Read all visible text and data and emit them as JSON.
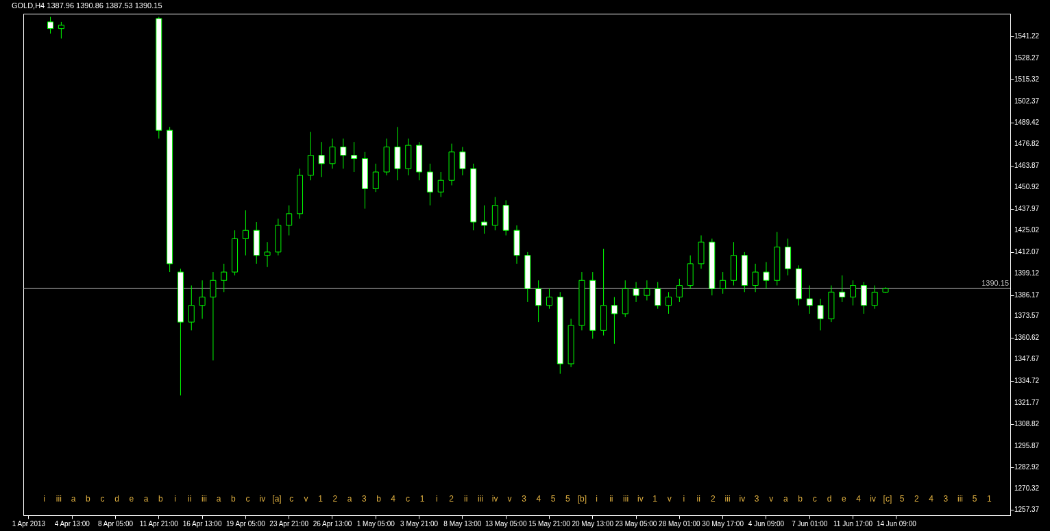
{
  "chart_data": {
    "type": "candlestick",
    "title": "GOLD,H4  1387.96 1390.86 1387.53 1390.15",
    "categories": [
      "1 Apr 2013",
      null,
      null,
      null,
      "4 Apr 13:00",
      null,
      null,
      null,
      "8 Apr 05:00",
      null,
      null,
      null,
      "11 Apr 21:00",
      null,
      null,
      null,
      "16 Apr 13:00",
      null,
      null,
      null,
      "19 Apr 05:00",
      null,
      null,
      null,
      "23 Apr 21:00",
      null,
      null,
      null,
      "26 Apr 13:00",
      null,
      null,
      null,
      "1 May 05:00",
      null,
      null,
      null,
      "3 May 21:00",
      null,
      null,
      null,
      "8 May 13:00",
      null,
      null,
      null,
      "13 May 05:00",
      null,
      null,
      null,
      "15 May 21:00",
      null,
      null,
      null,
      "20 May 13:00",
      null,
      null,
      null,
      "23 May 05:00",
      null,
      null,
      null,
      "28 May 01:00",
      null,
      null,
      null,
      "30 May 17:00",
      null,
      null,
      null,
      "4 Jun 09:00",
      null,
      null,
      null,
      "7 Jun 01:00",
      null,
      null,
      null,
      "11 Jun 17:00",
      null,
      null,
      null,
      "14 Jun 09:00",
      null,
      null,
      null,
      null,
      null,
      null,
      null,
      null,
      null,
      null
    ],
    "ylim": [
      1254.2,
      1554.9
    ],
    "yticks": [
      1257.37,
      1270.32,
      1282.92,
      1295.87,
      1308.82,
      1321.77,
      1334.72,
      1347.67,
      1360.62,
      1373.57,
      1386.17,
      1399.12,
      1412.07,
      1425.02,
      1437.97,
      1450.92,
      1463.87,
      1476.82,
      1489.42,
      1502.37,
      1515.32,
      1528.27,
      1541.22
    ],
    "ref_lines": [
      {
        "axis": "y",
        "value": 1390.15,
        "label": "1390.15",
        "color": "#c0c0c0"
      }
    ],
    "series": [
      {
        "color": "#00ff00",
        "ohlc": [
          null,
          null,
          [
            1550,
            1553,
            1543,
            1546
          ],
          [
            1546,
            1550,
            1540,
            1548
          ],
          null,
          null,
          null,
          null,
          null,
          null,
          null,
          null,
          [
            1552,
            1553,
            1480,
            1485
          ],
          [
            1485,
            1487,
            1400,
            1405
          ],
          [
            1400,
            1402,
            1326,
            1370
          ],
          [
            1370,
            1392,
            1365,
            1380
          ],
          [
            1380,
            1395,
            1372,
            1385
          ],
          [
            1385,
            1400,
            1347,
            1395
          ],
          [
            1395,
            1405,
            1388,
            1400
          ],
          [
            1400,
            1425,
            1398,
            1420
          ],
          [
            1420,
            1437,
            1410,
            1425
          ],
          [
            1425,
            1430,
            1405,
            1410
          ],
          [
            1410,
            1418,
            1403,
            1412
          ],
          [
            1412,
            1432,
            1410,
            1428
          ],
          [
            1428,
            1440,
            1422,
            1435
          ],
          [
            1435,
            1462,
            1432,
            1458
          ],
          [
            1458,
            1484,
            1455,
            1470
          ],
          [
            1470,
            1478,
            1457,
            1465
          ],
          [
            1465,
            1480,
            1462,
            1475
          ],
          [
            1475,
            1480,
            1462,
            1470
          ],
          [
            1470,
            1478,
            1460,
            1468
          ],
          [
            1468,
            1472,
            1438,
            1450
          ],
          [
            1450,
            1465,
            1448,
            1460
          ],
          [
            1460,
            1480,
            1458,
            1475
          ],
          [
            1475,
            1487,
            1455,
            1462
          ],
          [
            1462,
            1480,
            1458,
            1476
          ],
          [
            1476,
            1478,
            1455,
            1460
          ],
          [
            1460,
            1465,
            1440,
            1448
          ],
          [
            1448,
            1460,
            1445,
            1455
          ],
          [
            1455,
            1477,
            1452,
            1472
          ],
          [
            1472,
            1475,
            1458,
            1462
          ],
          [
            1462,
            1465,
            1425,
            1430
          ],
          [
            1430,
            1440,
            1423,
            1428
          ],
          [
            1428,
            1445,
            1425,
            1440
          ],
          [
            1440,
            1443,
            1422,
            1425
          ],
          [
            1425,
            1428,
            1405,
            1410
          ],
          [
            1410,
            1412,
            1382,
            1390
          ],
          [
            1390,
            1395,
            1370,
            1380
          ],
          [
            1380,
            1390,
            1378,
            1385
          ],
          [
            1385,
            1388,
            1339,
            1345
          ],
          [
            1345,
            1372,
            1343,
            1368
          ],
          [
            1368,
            1400,
            1365,
            1395
          ],
          [
            1395,
            1400,
            1360,
            1365
          ],
          [
            1365,
            1414,
            1362,
            1380
          ],
          [
            1380,
            1385,
            1357,
            1375
          ],
          [
            1375,
            1395,
            1373,
            1390
          ],
          [
            1390,
            1394,
            1382,
            1386
          ],
          [
            1386,
            1395,
            1383,
            1390
          ],
          [
            1390,
            1394,
            1378,
            1380
          ],
          [
            1380,
            1388,
            1375,
            1385
          ],
          [
            1385,
            1396,
            1382,
            1392
          ],
          [
            1392,
            1410,
            1390,
            1405
          ],
          [
            1405,
            1422,
            1402,
            1418
          ],
          [
            1418,
            1420,
            1386,
            1390
          ],
          [
            1390,
            1400,
            1387,
            1395
          ],
          [
            1395,
            1418,
            1392,
            1410
          ],
          [
            1410,
            1412,
            1388,
            1392
          ],
          [
            1392,
            1405,
            1388,
            1400
          ],
          [
            1400,
            1406,
            1390,
            1395
          ],
          [
            1395,
            1424,
            1392,
            1415
          ],
          [
            1415,
            1420,
            1398,
            1402
          ],
          [
            1402,
            1404,
            1380,
            1384
          ],
          [
            1384,
            1392,
            1375,
            1380
          ],
          [
            1380,
            1384,
            1365,
            1372
          ],
          [
            1372,
            1392,
            1370,
            1388
          ],
          [
            1388,
            1398,
            1382,
            1385
          ],
          [
            1385,
            1395,
            1380,
            1392
          ],
          [
            1392,
            1394,
            1375,
            1380
          ],
          [
            1380,
            1392,
            1378,
            1387.96
          ],
          [
            1387.96,
            1390.86,
            1387.53,
            1390.15
          ],
          null,
          null,
          null,
          null,
          null,
          null,
          null,
          null,
          null,
          null,
          null
        ]
      }
    ],
    "annotations": [
      "i",
      "iii",
      "a",
      "b",
      "c",
      "d",
      "e",
      "a",
      "b",
      "i",
      "ii",
      "iii",
      "a",
      "b",
      "c",
      "iv",
      "[a]",
      "c",
      "v",
      "1",
      "2",
      "a",
      "3",
      "b",
      "4",
      "c",
      "1",
      "i",
      "2",
      "ii",
      "iii",
      "iv",
      "v",
      "3",
      "4",
      "5",
      "5",
      "[b]",
      "i",
      "ii",
      "iii",
      "iv",
      "1",
      "v",
      "i",
      "ii",
      "2",
      "iii",
      "iv",
      "3",
      "v",
      "a",
      "b",
      "c",
      "d",
      "e",
      "4",
      "iv",
      "[c]",
      "5",
      "2",
      "4",
      "3",
      "iii",
      "5",
      "1"
    ]
  }
}
